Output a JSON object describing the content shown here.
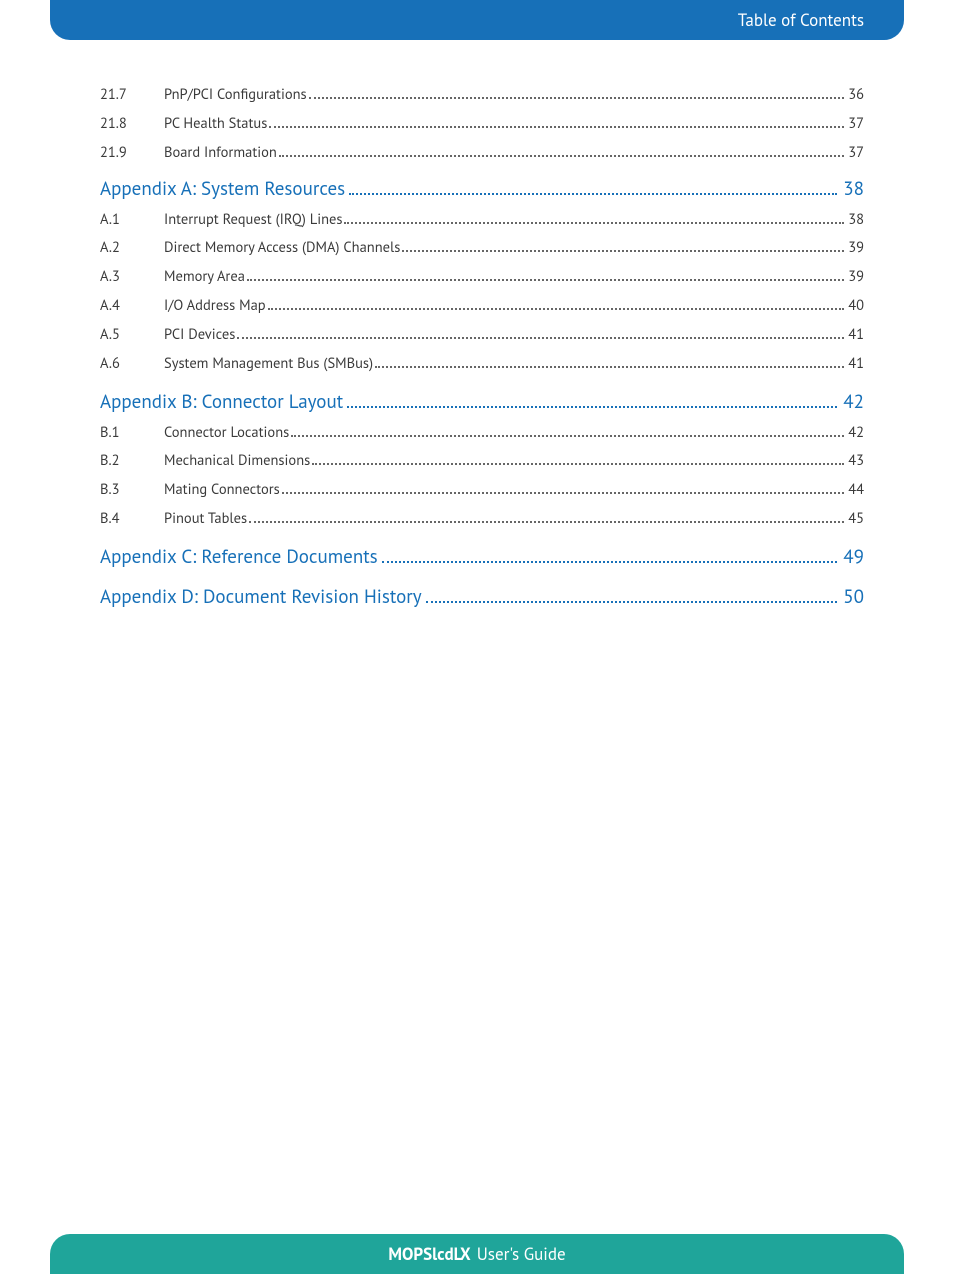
{
  "header": {
    "title": "Table of Contents"
  },
  "footer": {
    "product": "MOPSlcdLX",
    "suffix": "User's Guide"
  },
  "colors": {
    "header_bg": "#1770b8",
    "footer_bg": "#1fa59a",
    "link": "#1770b8",
    "text": "#3a3a3a"
  },
  "toc": [
    {
      "type": "sub",
      "num": "21.7",
      "title": "PnP/PCI Configurations",
      "page": "36"
    },
    {
      "type": "sub",
      "num": "21.8",
      "title": "PC Health Status",
      "page": "37"
    },
    {
      "type": "sub",
      "num": "21.9",
      "title": "Board Information",
      "page": "37"
    },
    {
      "type": "main",
      "title": "Appendix A: System Resources",
      "page": "38"
    },
    {
      "type": "sub",
      "num": "A.1",
      "title": "Interrupt Request (IRQ) Lines",
      "page": "38"
    },
    {
      "type": "sub",
      "num": "A.2",
      "title": "Direct Memory Access (DMA) Channels",
      "page": "39"
    },
    {
      "type": "sub",
      "num": "A.3",
      "title": "Memory Area",
      "page": "39"
    },
    {
      "type": "sub",
      "num": "A.4",
      "title": "I/O Address Map",
      "page": "40"
    },
    {
      "type": "sub",
      "num": "A.5",
      "title": "PCI Devices",
      "page": "41"
    },
    {
      "type": "sub",
      "num": "A.6",
      "title": "System Management Bus (SMBus)",
      "page": "41"
    },
    {
      "type": "main",
      "title": "Appendix B: Connector Layout",
      "page": "42"
    },
    {
      "type": "sub",
      "num": "B.1",
      "title": "Connector Locations",
      "page": "42"
    },
    {
      "type": "sub",
      "num": "B.2",
      "title": "Mechanical Dimensions",
      "page": "43"
    },
    {
      "type": "sub",
      "num": "B.3",
      "title": "Mating Connectors",
      "page": "44"
    },
    {
      "type": "sub",
      "num": "B.4",
      "title": "Pinout Tables",
      "page": "45"
    },
    {
      "type": "main",
      "title": "Appendix C: Reference Documents",
      "page": "49"
    },
    {
      "type": "main",
      "title": "Appendix D: Document Revision History",
      "page": "50"
    }
  ]
}
